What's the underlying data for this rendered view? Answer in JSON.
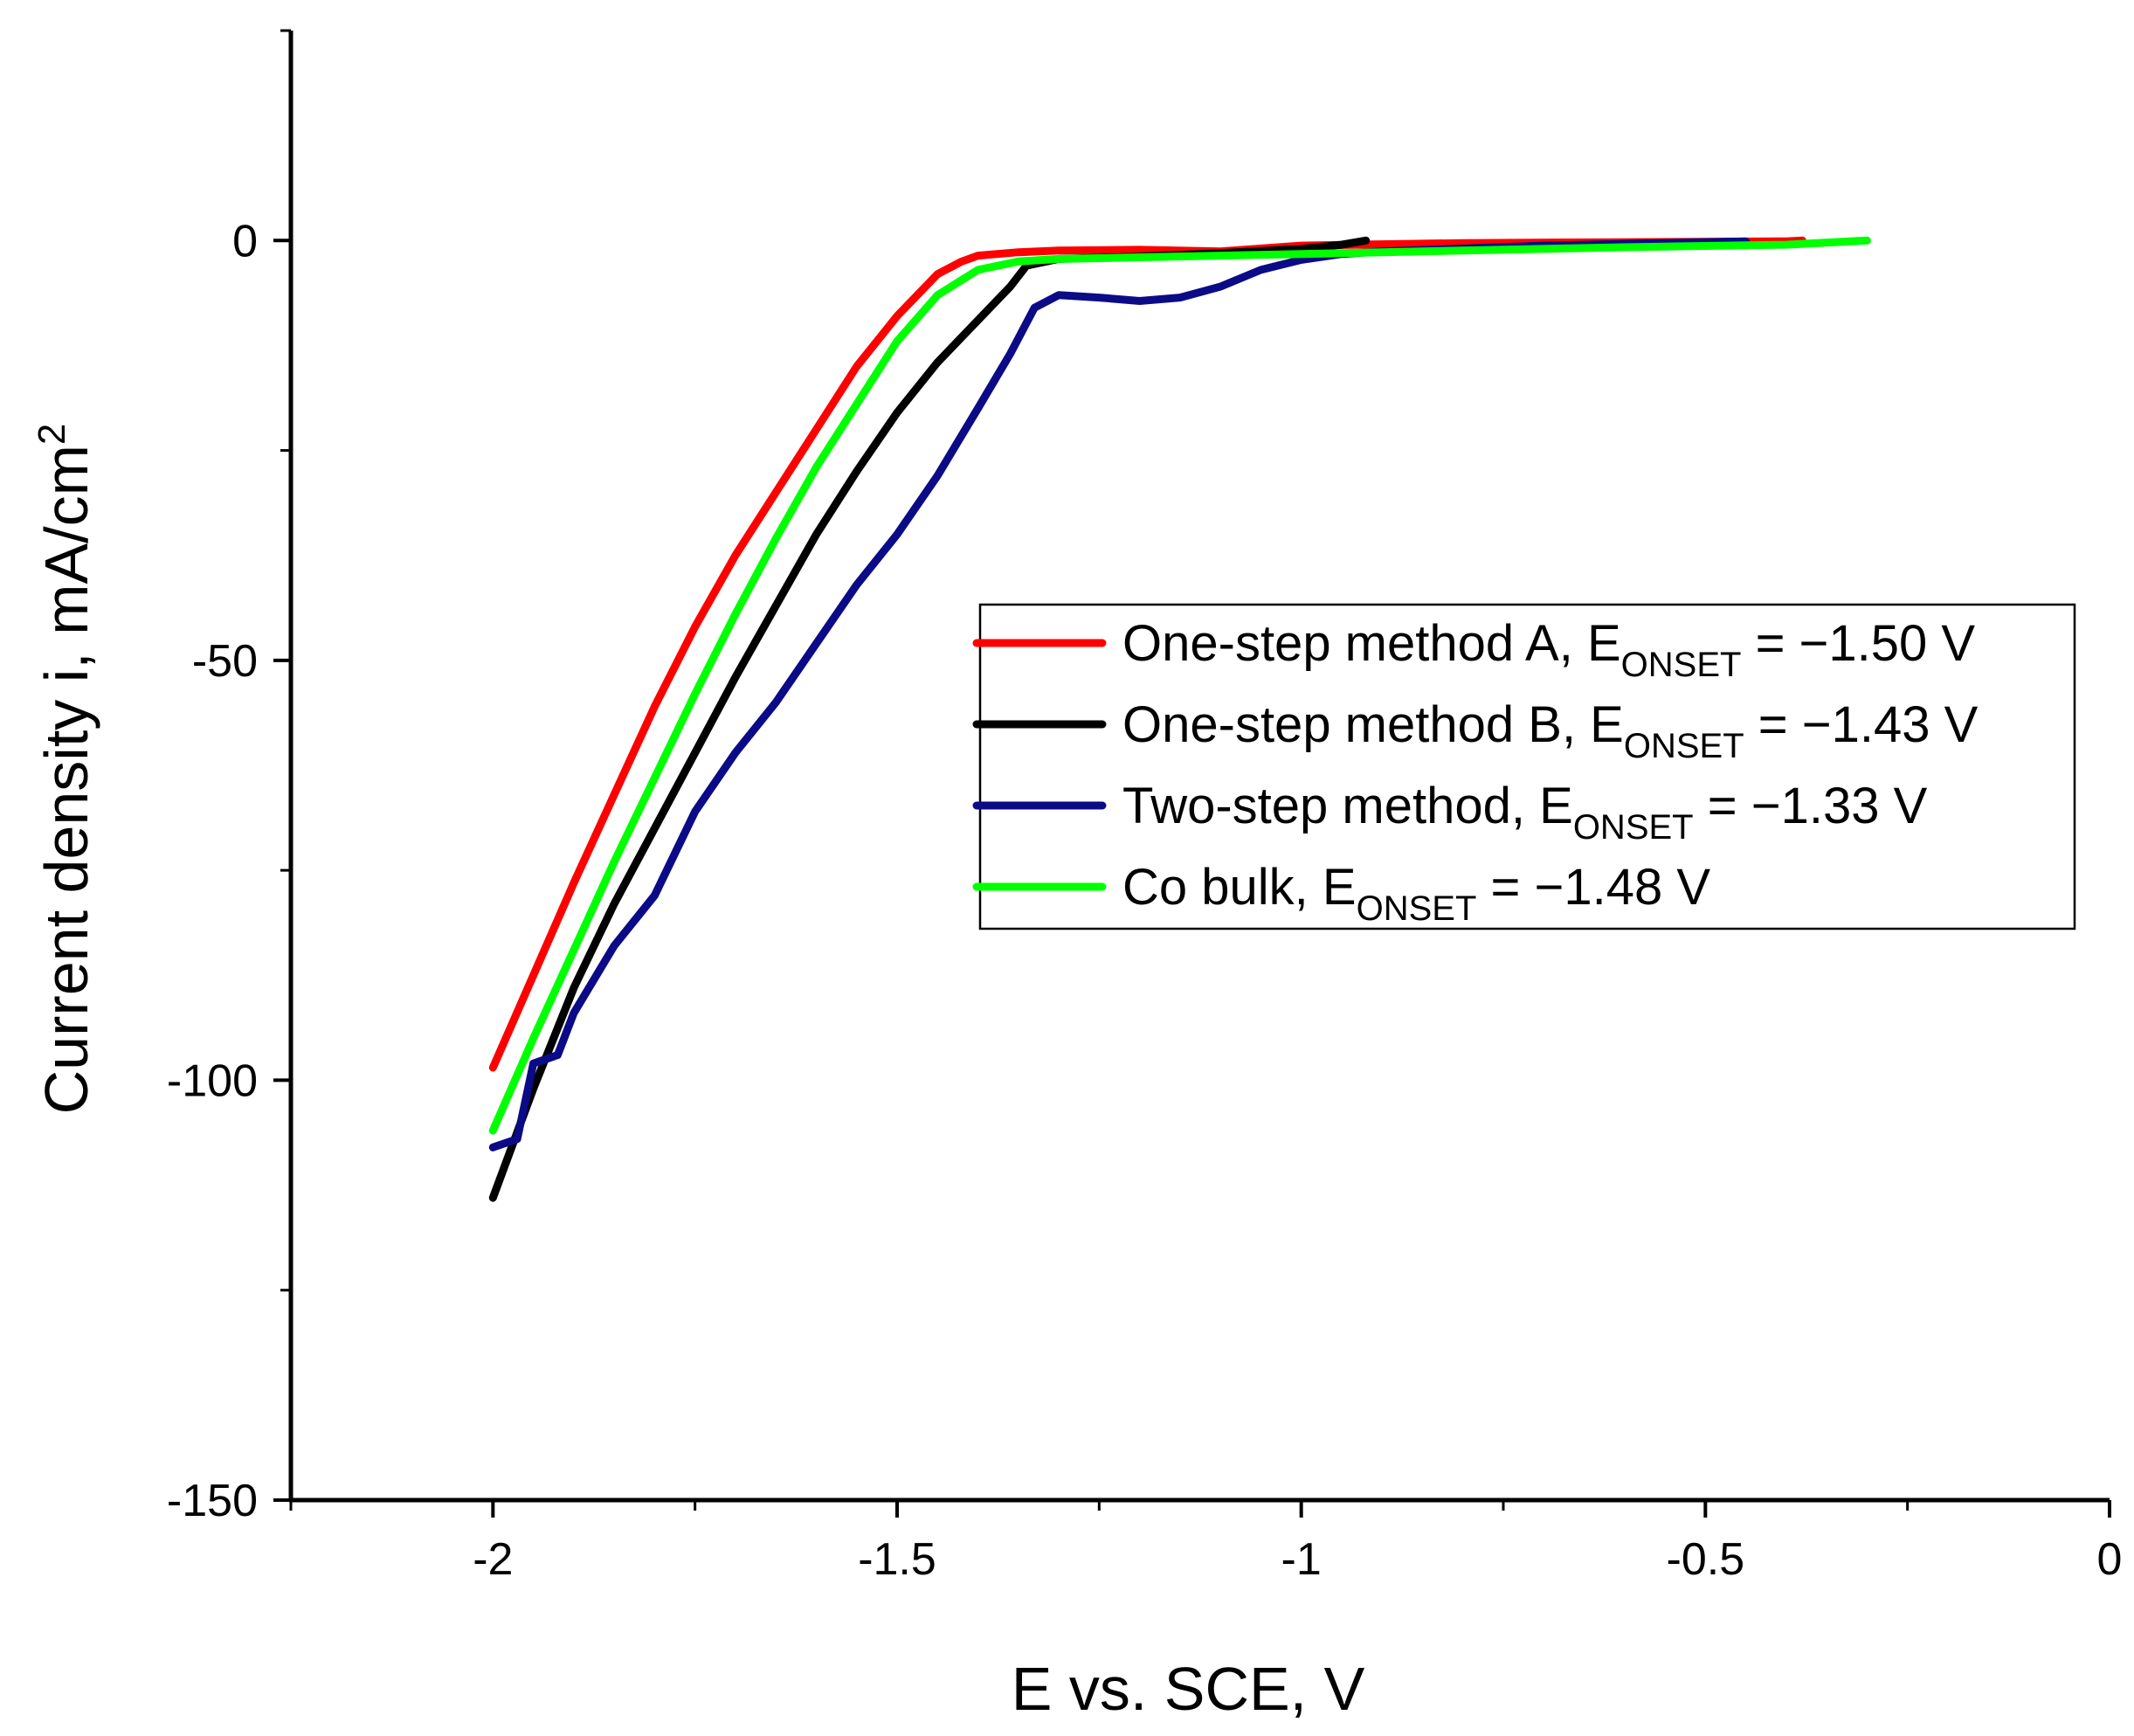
{
  "chart_data": {
    "type": "line",
    "title": "",
    "xlabel": "E vs. SCE, V",
    "ylabel": "Current density i, mA/cm",
    "ylabel_sup": "2",
    "xlim": [
      -2.25,
      0
    ],
    "ylim": [
      -150,
      25
    ],
    "x_ticks": [
      {
        "value": -2,
        "label": "-2"
      },
      {
        "value": -1.5,
        "label": "-1.5"
      },
      {
        "value": -1,
        "label": "-1"
      },
      {
        "value": -0.5,
        "label": "-0.5"
      },
      {
        "value": 0,
        "label": "0"
      }
    ],
    "x_minor_ticks": [
      -2.25,
      -1.75,
      -1.25,
      -0.75,
      -0.25
    ],
    "y_ticks": [
      {
        "value": 0,
        "label": "0"
      },
      {
        "value": -50,
        "label": "-50"
      },
      {
        "value": -100,
        "label": "-100"
      },
      {
        "value": -150,
        "label": "-150"
      }
    ],
    "y_minor_ticks": [
      25,
      -25,
      -75,
      -125
    ],
    "legend_position": "center-right",
    "series": [
      {
        "name": "One-step method A",
        "legend_prefix": "One-step method A, E",
        "legend_sub": "ONSET",
        "legend_suffix": " = −1.50 V",
        "color": "#ff0000",
        "x": [
          -2.0,
          -1.95,
          -1.9,
          -1.85,
          -1.8,
          -1.75,
          -1.7,
          -1.65,
          -1.6,
          -1.55,
          -1.5,
          -1.45,
          -1.42,
          -1.4,
          -1.35,
          -1.3,
          -1.2,
          -1.1,
          -1.0,
          -0.8,
          -0.6,
          -0.4,
          -0.38
        ],
        "y": [
          -98.5,
          -87.5,
          -76.5,
          -66.0,
          -55.5,
          -46.0,
          -37.5,
          -30.0,
          -22.5,
          -15.0,
          -9.0,
          -4.0,
          -2.5,
          -1.8,
          -1.4,
          -1.2,
          -1.1,
          -1.3,
          -0.6,
          -0.3,
          -0.2,
          -0.1,
          0.0
        ]
      },
      {
        "name": "One-step method B",
        "legend_prefix": "One-step method B, E",
        "legend_sub": "ONSET",
        "legend_suffix": " = −1.43 V",
        "color": "#000000",
        "x": [
          -2.0,
          -1.95,
          -1.9,
          -1.85,
          -1.8,
          -1.75,
          -1.7,
          -1.65,
          -1.6,
          -1.55,
          -1.5,
          -1.45,
          -1.4,
          -1.36,
          -1.34,
          -1.3,
          -1.2,
          -1.1,
          -1.0,
          -0.95,
          -0.92
        ],
        "y": [
          -114.0,
          -101.0,
          -89.0,
          -79.0,
          -70.0,
          -61.0,
          -52.0,
          -43.5,
          -35.0,
          -27.5,
          -20.5,
          -14.5,
          -9.5,
          -5.5,
          -3.0,
          -2.2,
          -1.9,
          -1.5,
          -1.0,
          -0.5,
          0.0
        ]
      },
      {
        "name": "Two-step method",
        "legend_prefix": "Two-step method, E",
        "legend_sub": "ONSET",
        "legend_suffix": " = −1.33 V",
        "color": "#0b0b87",
        "x": [
          -2.0,
          -1.97,
          -1.95,
          -1.92,
          -1.9,
          -1.85,
          -1.8,
          -1.75,
          -1.7,
          -1.65,
          -1.6,
          -1.55,
          -1.5,
          -1.45,
          -1.4,
          -1.36,
          -1.33,
          -1.3,
          -1.25,
          -1.2,
          -1.15,
          -1.1,
          -1.05,
          -1.0,
          -0.95,
          -0.9,
          -0.7,
          -0.45
        ],
        "y": [
          -108.0,
          -107.0,
          -98.0,
          -97.0,
          -92.0,
          -84.0,
          -78.0,
          -68.0,
          -61.0,
          -55.0,
          -48.0,
          -41.0,
          -35.0,
          -28.0,
          -20.0,
          -13.5,
          -8.0,
          -6.5,
          -6.8,
          -7.2,
          -6.8,
          -5.5,
          -3.5,
          -2.3,
          -1.6,
          -1.3,
          -0.6,
          -0.1
        ]
      },
      {
        "name": "Co bulk",
        "legend_prefix": "Co bulk, E",
        "legend_sub": "ONSET",
        "legend_suffix": " = −1.48 V",
        "color": "#00ff00",
        "x": [
          -2.0,
          -1.95,
          -1.9,
          -1.85,
          -1.8,
          -1.75,
          -1.7,
          -1.65,
          -1.6,
          -1.55,
          -1.5,
          -1.45,
          -1.4,
          -1.35,
          -1.3,
          -1.2,
          -1.1,
          -1.0,
          -0.8,
          -0.6,
          -0.4,
          -0.3
        ],
        "y": [
          -106.0,
          -95.0,
          -84.5,
          -74.0,
          -64.0,
          -54.0,
          -44.5,
          -35.5,
          -27.0,
          -19.5,
          -12.0,
          -6.5,
          -3.5,
          -2.5,
          -2.2,
          -2.0,
          -1.8,
          -1.6,
          -1.2,
          -0.8,
          -0.5,
          0.0
        ]
      }
    ]
  }
}
